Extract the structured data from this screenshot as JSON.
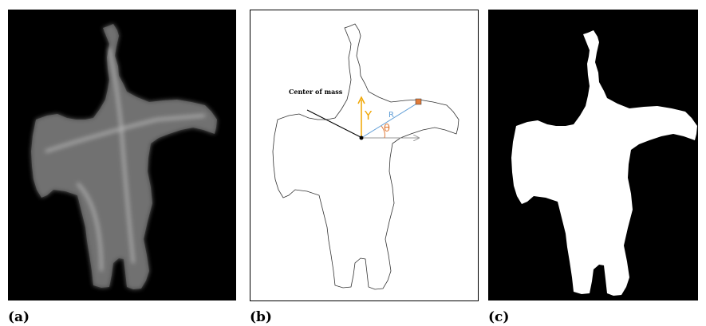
{
  "panels": [
    {
      "label": "(a)"
    },
    {
      "label": "(b)",
      "annotations": {
        "center": "Center of mass",
        "y": "Y",
        "r": "R",
        "theta": "θ"
      }
    },
    {
      "label": "(c)"
    }
  ]
}
